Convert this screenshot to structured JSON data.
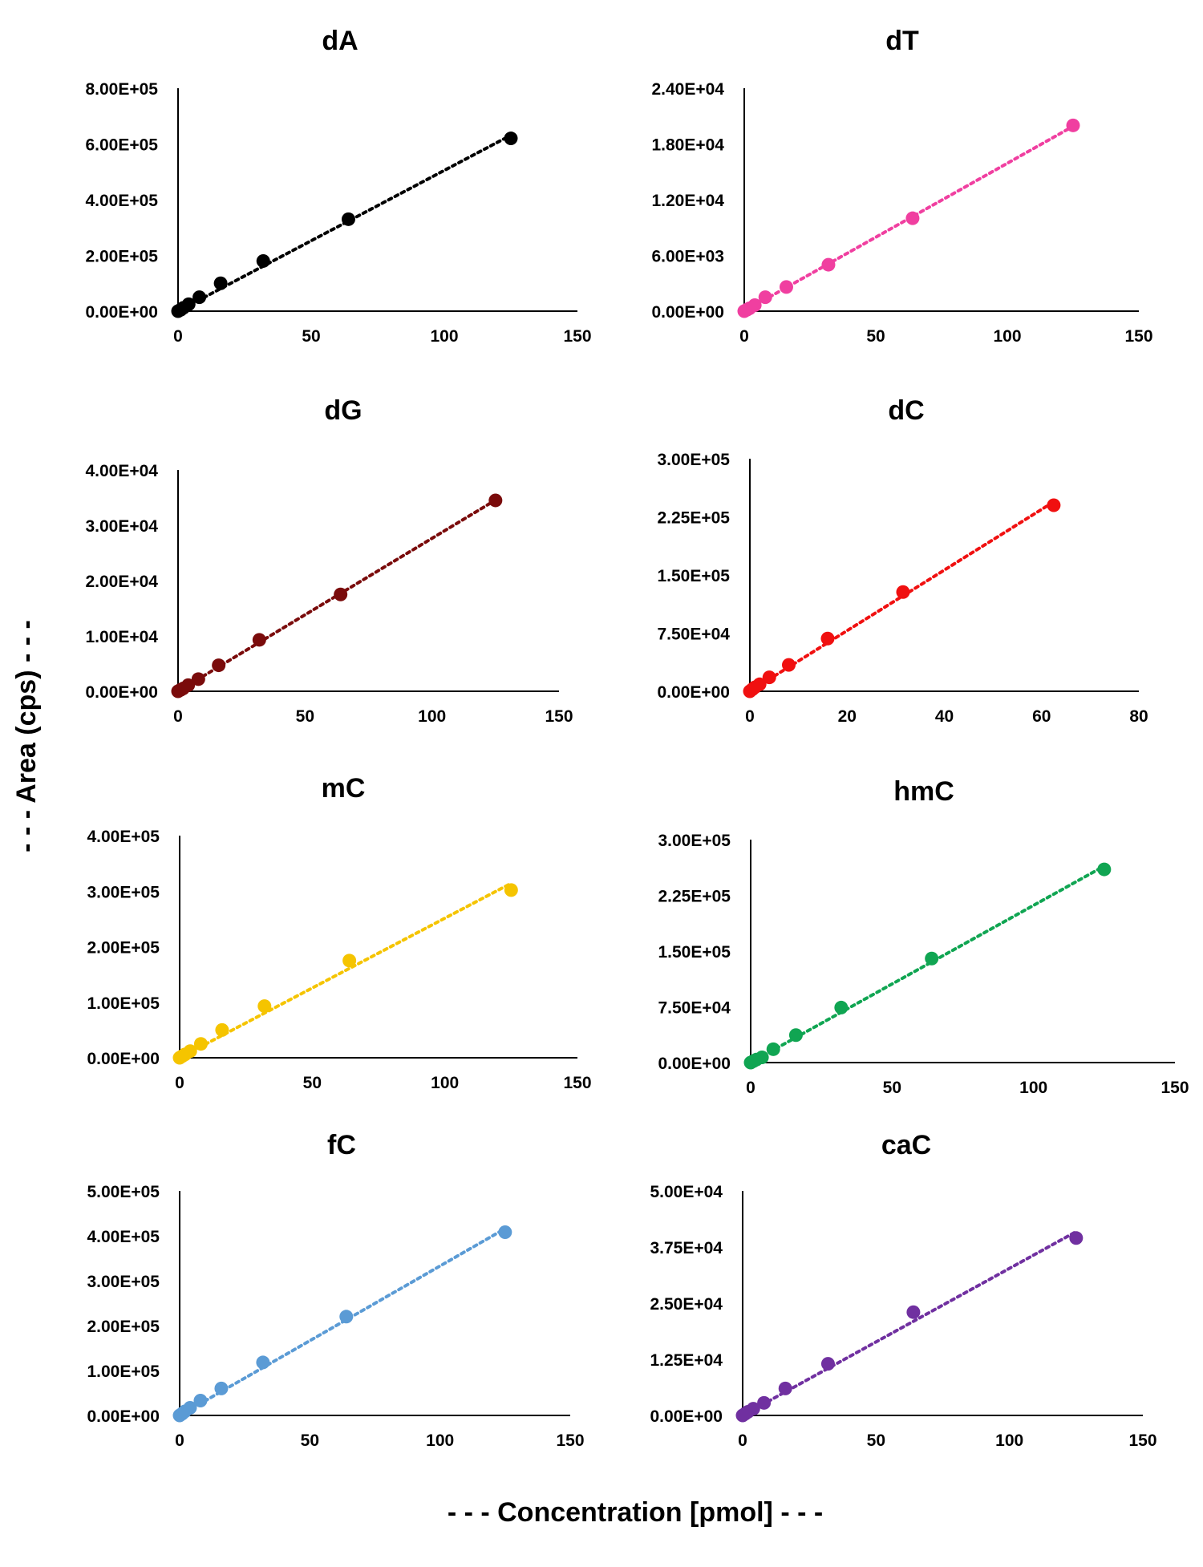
{
  "figure": {
    "y_axis_title": "- - - Area (cps) - - -",
    "x_axis_title": "- - - Concentration [pmol] - - -"
  },
  "chart_data": [
    {
      "type": "scatter",
      "title": "dA",
      "color": "#000000",
      "x": [
        0,
        1,
        2,
        4,
        8,
        16,
        32,
        64,
        125
      ],
      "y": [
        0,
        5000,
        12000,
        25000,
        50000,
        100000,
        180000,
        330000,
        620000
      ],
      "xlim": [
        0,
        150
      ],
      "ylim": [
        0,
        800000
      ],
      "x_ticks": [
        0,
        50,
        100,
        150
      ],
      "x_tick_labels": [
        "0",
        "50",
        "100",
        "150"
      ],
      "y_ticks": [
        0,
        200000,
        400000,
        600000,
        800000
      ],
      "y_tick_labels": [
        "0.00E+00",
        "2.00E+05",
        "4.00E+05",
        "6.00E+05",
        "8.00E+05"
      ],
      "trendline": "linear-dotted"
    },
    {
      "type": "scatter",
      "title": "dT",
      "color": "#f03fa0",
      "x": [
        0,
        1,
        2,
        4,
        8,
        16,
        32,
        64,
        125
      ],
      "y": [
        0,
        150,
        300,
        650,
        1500,
        2600,
        5000,
        10000,
        20000
      ],
      "xlim": [
        0,
        150
      ],
      "ylim": [
        0,
        24000
      ],
      "x_ticks": [
        0,
        50,
        100,
        150
      ],
      "x_tick_labels": [
        "0",
        "50",
        "100",
        "150"
      ],
      "y_ticks": [
        0,
        6000,
        12000,
        18000,
        24000
      ],
      "y_tick_labels": [
        "0.00E+00",
        "6.00E+03",
        "1.20E+04",
        "1.80E+04",
        "2.40E+04"
      ],
      "trendline": "linear-dotted"
    },
    {
      "type": "scatter",
      "title": "dG",
      "color": "#7a0b0b",
      "x": [
        0,
        1,
        2,
        4,
        8,
        16,
        32,
        64,
        125
      ],
      "y": [
        0,
        250,
        500,
        1100,
        2200,
        4700,
        9300,
        17500,
        34500
      ],
      "xlim": [
        0,
        150
      ],
      "ylim": [
        0,
        40000
      ],
      "x_ticks": [
        0,
        50,
        100,
        150
      ],
      "x_tick_labels": [
        "0",
        "50",
        "100",
        "150"
      ],
      "y_ticks": [
        0,
        10000,
        20000,
        30000,
        40000
      ],
      "y_tick_labels": [
        "0.00E+00",
        "1.00E+04",
        "2.00E+04",
        "3.00E+04",
        "4.00E+04"
      ],
      "trendline": "linear-dotted"
    },
    {
      "type": "scatter",
      "title": "dC",
      "color": "#f01010",
      "x": [
        0,
        0.5,
        1,
        2,
        4,
        8,
        16,
        31.5,
        62.5
      ],
      "y": [
        0,
        2500,
        5000,
        9000,
        18000,
        34000,
        68000,
        128000,
        240000
      ],
      "xlim": [
        0,
        80
      ],
      "ylim": [
        0,
        300000
      ],
      "x_ticks": [
        0,
        20,
        40,
        60,
        80
      ],
      "x_tick_labels": [
        "0",
        "20",
        "40",
        "60",
        "80"
      ],
      "y_ticks": [
        0,
        75000,
        150000,
        225000,
        300000
      ],
      "y_tick_labels": [
        "0.00E+00",
        "7.50E+04",
        "1.50E+05",
        "2.25E+05",
        "3.00E+05"
      ],
      "trendline": "linear-dotted"
    },
    {
      "type": "scatter",
      "title": "mC",
      "color": "#f5c400",
      "x": [
        0,
        1,
        2,
        4,
        8,
        16,
        32,
        64,
        125
      ],
      "y": [
        0,
        3000,
        6000,
        12000,
        25000,
        50000,
        93000,
        175000,
        302000
      ],
      "xlim": [
        0,
        150
      ],
      "ylim": [
        0,
        400000
      ],
      "x_ticks": [
        0,
        50,
        100,
        150
      ],
      "x_tick_labels": [
        "0",
        "50",
        "100",
        "150"
      ],
      "y_ticks": [
        0,
        100000,
        200000,
        300000,
        400000
      ],
      "y_tick_labels": [
        "0.00E+00",
        "1.00E+05",
        "2.00E+05",
        "3.00E+05",
        "4.00E+05"
      ],
      "trendline": "linear-dotted"
    },
    {
      "type": "scatter",
      "title": "hmC",
      "color": "#10a552",
      "x": [
        0,
        1,
        2,
        4,
        8,
        16,
        32,
        64,
        125
      ],
      "y": [
        0,
        2000,
        4000,
        7000,
        18000,
        37000,
        74000,
        140000,
        260000
      ],
      "xlim": [
        0,
        150
      ],
      "ylim": [
        0,
        300000
      ],
      "x_ticks": [
        0,
        50,
        100,
        150
      ],
      "x_tick_labels": [
        "0",
        "50",
        "100",
        "150"
      ],
      "y_ticks": [
        0,
        75000,
        150000,
        225000,
        300000
      ],
      "y_tick_labels": [
        "0.00E+00",
        "7.50E+04",
        "1.50E+05",
        "2.25E+05",
        "3.00E+05"
      ],
      "trendline": "linear-dotted"
    },
    {
      "type": "scatter",
      "title": "fC",
      "color": "#5b9bd5",
      "x": [
        0,
        1,
        2,
        4,
        8,
        16,
        32,
        64,
        125
      ],
      "y": [
        0,
        4000,
        9000,
        17000,
        33000,
        60000,
        118000,
        220000,
        408000
      ],
      "xlim": [
        0,
        150
      ],
      "ylim": [
        0,
        500000
      ],
      "x_ticks": [
        0,
        50,
        100,
        150
      ],
      "x_tick_labels": [
        "0",
        "50",
        "100",
        "150"
      ],
      "y_ticks": [
        0,
        100000,
        200000,
        300000,
        400000,
        500000
      ],
      "y_tick_labels": [
        "0.00E+00",
        "1.00E+05",
        "2.00E+05",
        "3.00E+05",
        "4.00E+05",
        "5.00E+05"
      ],
      "trendline": "linear-dotted"
    },
    {
      "type": "scatter",
      "title": "caC",
      "color": "#7030a0",
      "x": [
        0,
        1,
        2,
        4,
        8,
        16,
        32,
        64,
        125
      ],
      "y": [
        0,
        400,
        800,
        1500,
        2800,
        6000,
        11500,
        23000,
        39500
      ],
      "xlim": [
        0,
        150
      ],
      "ylim": [
        0,
        50000
      ],
      "x_ticks": [
        0,
        50,
        100,
        150
      ],
      "x_tick_labels": [
        "0",
        "50",
        "100",
        "150"
      ],
      "y_ticks": [
        0,
        12500,
        25000,
        37500,
        50000
      ],
      "y_tick_labels": [
        "0.00E+00",
        "1.25E+04",
        "2.50E+04",
        "3.75E+04",
        "5.00E+04"
      ],
      "trendline": "linear-dotted"
    }
  ]
}
